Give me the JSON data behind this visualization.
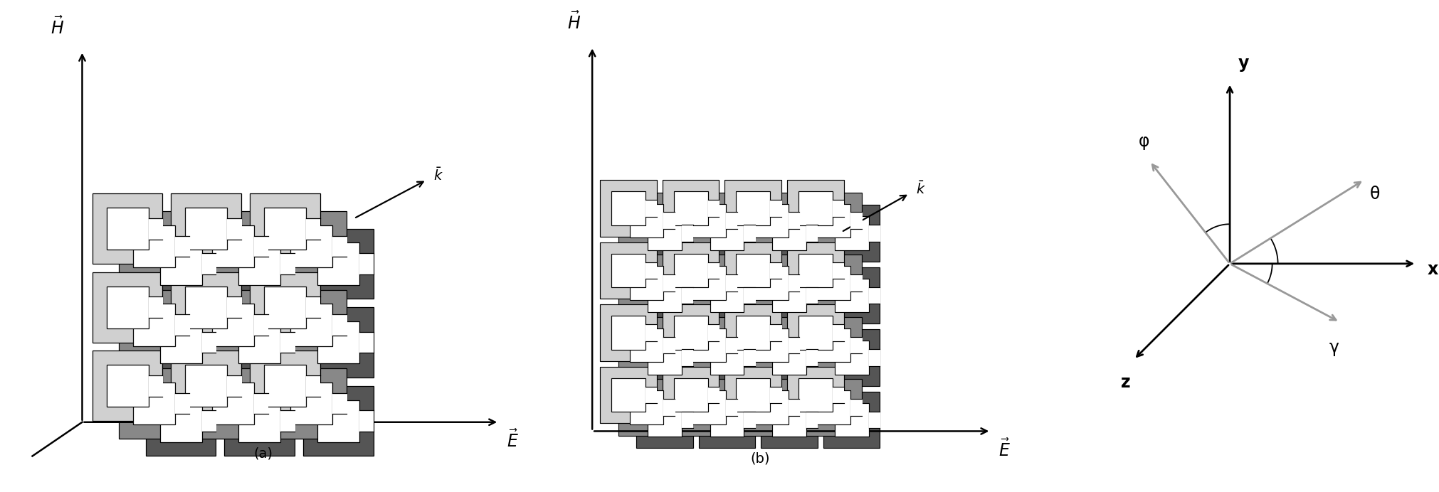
{
  "fig_width": 20.22,
  "fig_height": 6.92,
  "bg_color": "#ffffff",
  "panel_a_label": "(a)",
  "panel_b_label": "(b)",
  "H_label": "$\\vec{H}$",
  "E_label": "$\\vec{E}$",
  "k_label": "$\\bar{k}$",
  "x_label": "x",
  "y_label": "y",
  "z_label": "z",
  "phi_label": "φ",
  "theta_label": "θ",
  "gamma_label": "γ",
  "color_dark": "#555555",
  "color_mid": "#888888",
  "color_light": "#bbbbbb",
  "color_lighter": "#d0d0d0",
  "axis_color": "#000000",
  "gray_arrow_color": "#999999"
}
